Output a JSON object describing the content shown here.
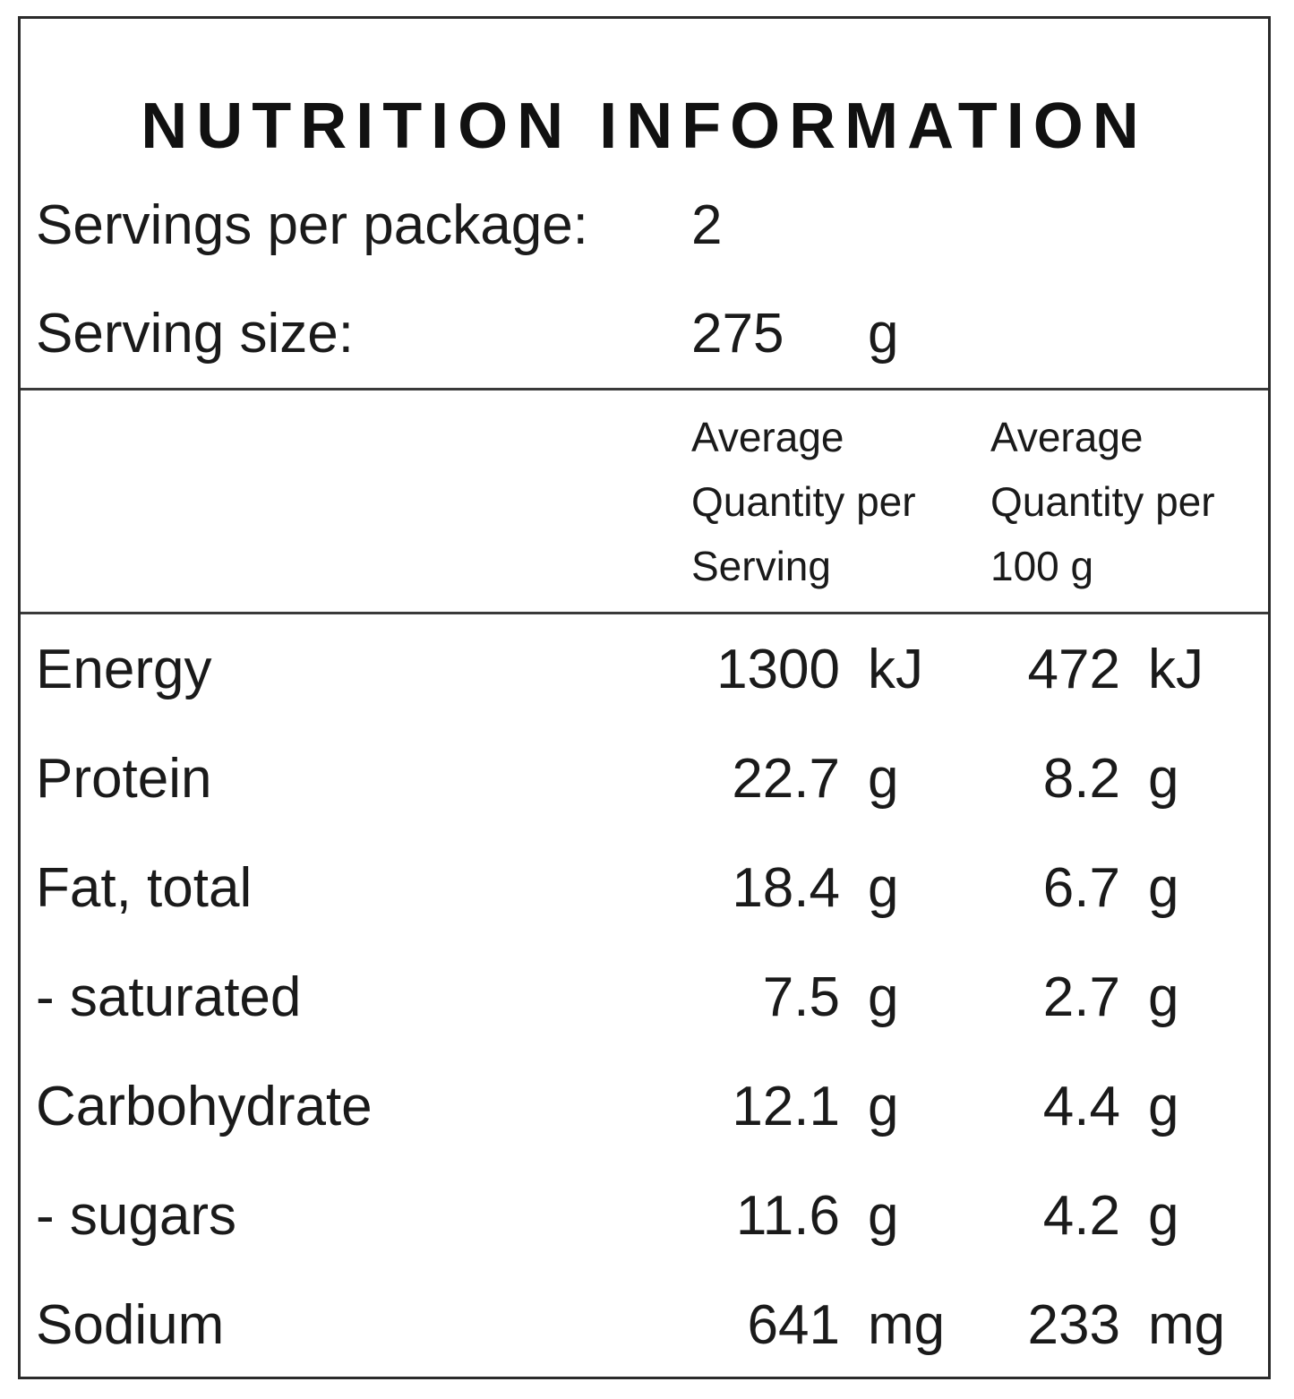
{
  "title": "NUTRITION INFORMATION",
  "servings_per_package": {
    "label": "Servings per package:",
    "value": "2"
  },
  "serving_size": {
    "label": "Serving size:",
    "value": "275",
    "unit": "g"
  },
  "columns": {
    "per_serving": [
      "Average",
      "Quantity per",
      "Serving"
    ],
    "per_100g": [
      "Average",
      "Quantity per",
      "100 g"
    ]
  },
  "rows": [
    {
      "name": "Energy",
      "serving": "1300",
      "serving_unit": "kJ",
      "per100": "472",
      "per100_unit": "kJ"
    },
    {
      "name": "Protein",
      "serving": "22.7",
      "serving_unit": "g",
      "per100": "8.2",
      "per100_unit": "g"
    },
    {
      "name": "Fat, total",
      "serving": "18.4",
      "serving_unit": "g",
      "per100": "6.7",
      "per100_unit": "g"
    },
    {
      "name": "- saturated",
      "serving": "7.5",
      "serving_unit": "g",
      "per100": "2.7",
      "per100_unit": "g"
    },
    {
      "name": "Carbohydrate",
      "serving": "12.1",
      "serving_unit": "g",
      "per100": "4.4",
      "per100_unit": "g"
    },
    {
      "name": "- sugars",
      "serving": "11.6",
      "serving_unit": "g",
      "per100": "4.2",
      "per100_unit": "g"
    },
    {
      "name": "Sodium",
      "serving": "641",
      "serving_unit": "mg",
      "per100": "233",
      "per100_unit": "mg"
    }
  ]
}
